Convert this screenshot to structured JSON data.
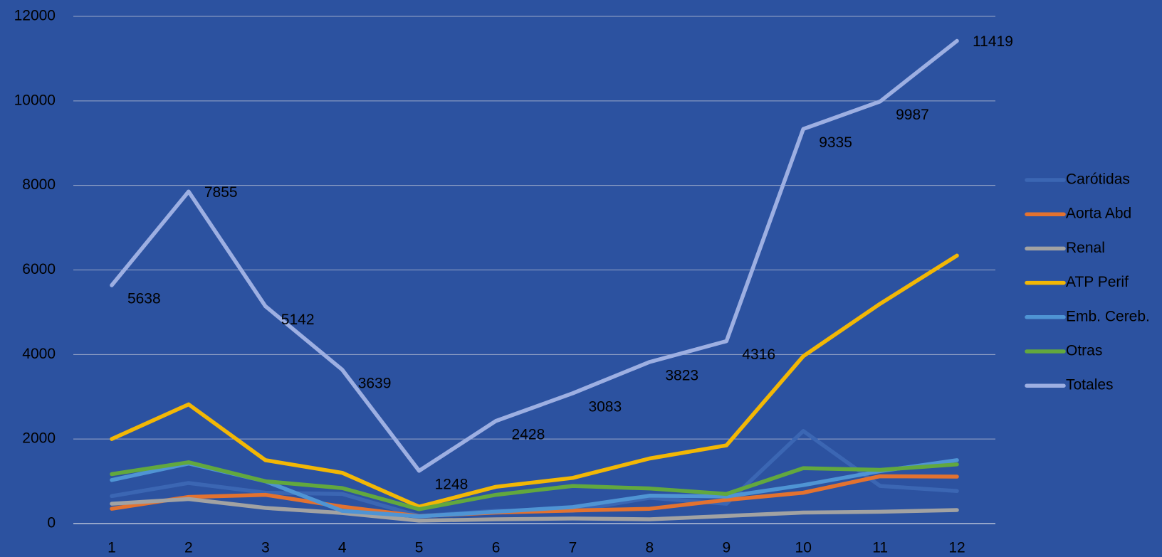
{
  "chart_data": {
    "type": "line",
    "categories": [
      "1",
      "2",
      "3",
      "4",
      "5",
      "6",
      "7",
      "8",
      "9",
      "10",
      "11",
      "12"
    ],
    "ylim": [
      0,
      12000
    ],
    "yticks": [
      0,
      2000,
      4000,
      6000,
      8000,
      10000,
      12000
    ],
    "grid": true,
    "legend": "right",
    "background": "#2c52a0",
    "series": [
      {
        "name": "Carótidas",
        "color": "#3b66b3",
        "values": [
          650,
          960,
          730,
          700,
          180,
          300,
          300,
          610,
          470,
          2190,
          890,
          770
        ]
      },
      {
        "name": "Aorta Abd",
        "color": "#e3722f",
        "values": [
          350,
          630,
          680,
          400,
          175,
          260,
          310,
          350,
          560,
          730,
          1120,
          1110
        ]
      },
      {
        "name": "Renal",
        "color": "#a2a2a2",
        "values": [
          470,
          580,
          370,
          250,
          70,
          100,
          120,
          100,
          180,
          260,
          280,
          320
        ]
      },
      {
        "name": "ATP Perif",
        "color": "#f2b705",
        "values": [
          2000,
          2820,
          1500,
          1200,
          400,
          870,
          1080,
          1540,
          1850,
          3960,
          5200,
          6340
        ]
      },
      {
        "name": "Emb. Cereb.",
        "color": "#4f94d4",
        "values": [
          1030,
          1420,
          1000,
          300,
          170,
          280,
          390,
          660,
          640,
          910,
          1240,
          1500
        ]
      },
      {
        "name": "Otras",
        "color": "#62a83e",
        "values": [
          1170,
          1450,
          1000,
          840,
          340,
          680,
          890,
          830,
          700,
          1310,
          1270,
          1400
        ]
      },
      {
        "name": "Totales",
        "color": "#9dafe2",
        "labels": true,
        "values": [
          5638,
          7855,
          5142,
          3639,
          1248,
          2428,
          3083,
          3823,
          4316,
          9335,
          9987,
          11419
        ]
      }
    ]
  }
}
